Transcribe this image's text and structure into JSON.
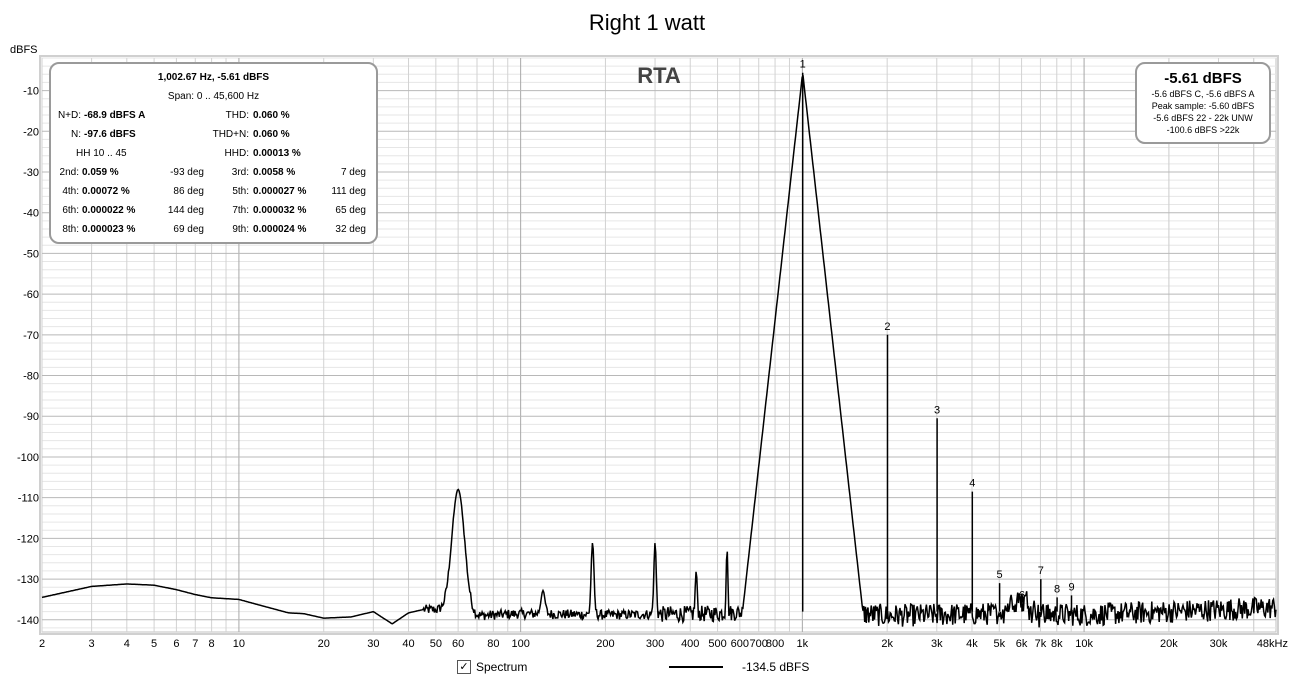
{
  "chart_data": {
    "type": "line",
    "title": "Right 1 watt",
    "plot_label": "RTA",
    "ylabel": "dBFS",
    "xlabel": "",
    "x_scale": "log",
    "xlim": [
      2,
      48000
    ],
    "ylim": [
      -143,
      -2
    ],
    "grid": true,
    "y_ticks": [
      -10,
      -20,
      -30,
      -40,
      -50,
      -60,
      -70,
      -80,
      -90,
      -100,
      -110,
      -120,
      -130,
      -140
    ],
    "y_tick_labels": [
      "-10",
      "-20",
      "-30",
      "-40",
      "-50",
      "-60",
      "-70",
      "-80",
      "-90",
      "-100",
      "-110",
      "-120",
      "-130",
      "-140"
    ],
    "x_ticks": [
      2,
      3,
      4,
      5,
      6,
      7,
      8,
      10,
      20,
      30,
      40,
      50,
      60,
      80,
      100,
      200,
      300,
      400,
      500,
      600,
      700,
      800,
      1000,
      2000,
      3000,
      4000,
      5000,
      6000,
      7000,
      8000,
      10000,
      20000,
      30000,
      48000
    ],
    "x_tick_labels": [
      "2",
      "3",
      "4",
      "5",
      "6",
      "7",
      "8",
      "10",
      "20",
      "30",
      "40",
      "50",
      "60",
      "80",
      "100",
      "200",
      "300",
      "400",
      "500",
      "600",
      "700",
      "800",
      "1k",
      "2k",
      "3k",
      "4k",
      "5k",
      "6k",
      "7k",
      "8k",
      "10k",
      "20k",
      "30k",
      "48kHz"
    ],
    "series": [
      {
        "name": "Spectrum",
        "color": "#000000",
        "baseline": [
          [
            2,
            -134.5
          ],
          [
            3,
            -131.8
          ],
          [
            4,
            -131.2
          ],
          [
            5,
            -131.5
          ],
          [
            6,
            -132.6
          ],
          [
            7,
            -133.8
          ],
          [
            8,
            -134.6
          ],
          [
            10,
            -135
          ],
          [
            12,
            -136.5
          ],
          [
            15,
            -138.3
          ],
          [
            17,
            -138.5
          ],
          [
            20,
            -139.6
          ],
          [
            25,
            -139.3
          ],
          [
            30,
            -138
          ],
          [
            35,
            -141
          ],
          [
            40,
            -138.3
          ],
          [
            45,
            -137.5
          ],
          [
            50,
            -137.5
          ],
          [
            55,
            -138
          ],
          [
            70,
            -139
          ],
          [
            100,
            -138.5
          ],
          [
            200,
            -138.8
          ],
          [
            500,
            -138.5
          ],
          [
            900,
            -137.5
          ],
          [
            1100,
            -137.5
          ],
          [
            2000,
            -139
          ],
          [
            5000,
            -138.5
          ],
          [
            10000,
            -138.8
          ],
          [
            48000,
            -137
          ]
        ],
        "peaks": [
          {
            "f": 60,
            "db": -108,
            "w": 0.032
          },
          {
            "f": 120,
            "db": -132.8,
            "w": 0.01
          },
          {
            "f": 180,
            "db": -121,
            "w": 0.007
          },
          {
            "f": 300,
            "db": -121,
            "w": 0.006
          },
          {
            "f": 420,
            "db": -128,
            "w": 0.005
          },
          {
            "f": 540,
            "db": -122,
            "w": 0.004
          },
          {
            "f": 660,
            "db": -129.5,
            "w": 0.004
          },
          {
            "f": 780,
            "db": -129.5,
            "w": 0.004
          }
        ],
        "harmonics": [
          {
            "label": "1",
            "f": 1002.67,
            "db": -5.61
          },
          {
            "label": "2",
            "f": 2005,
            "db": -70
          },
          {
            "label": "3",
            "f": 3008,
            "db": -90.5
          },
          {
            "label": "4",
            "f": 4010,
            "db": -108.5
          },
          {
            "label": "5",
            "f": 5013,
            "db": -131
          },
          {
            "label": "6",
            "f": 6016,
            "db": -136
          },
          {
            "label": "7",
            "f": 7019,
            "db": -130
          },
          {
            "label": "8",
            "f": 8021,
            "db": -134.5
          },
          {
            "label": "9",
            "f": 9024,
            "db": -134
          }
        ]
      }
    ]
  },
  "stats": {
    "header": "1,002.67 Hz, -5.61 dBFS",
    "span": "Span: 0 .. 45,600 Hz",
    "nd_label": "N+D:",
    "nd_value": "-68.9 dBFS A",
    "thd_label": "THD:",
    "thd_value": "0.060 %",
    "n_label": "N:",
    "n_value": "-97.6 dBFS",
    "thdn_label": "THD+N:",
    "thdn_value": "0.060 %",
    "hh_range": "HH 10 .. 45",
    "hhd_label": "HHD:",
    "hhd_value": "0.00013 %",
    "harmonics": [
      {
        "l1": "2nd:",
        "v1": "0.059 %",
        "d1": "-93 deg",
        "l2": "3rd:",
        "v2": "0.0058 %",
        "d2": "7 deg"
      },
      {
        "l1": "4th:",
        "v1": "0.00072 %",
        "d1": "86 deg",
        "l2": "5th:",
        "v2": "0.000027 %",
        "d2": "111 deg"
      },
      {
        "l1": "6th:",
        "v1": "0.000022 %",
        "d1": "144 deg",
        "l2": "7th:",
        "v2": "0.000032 %",
        "d2": "65 deg"
      },
      {
        "l1": "8th:",
        "v1": "0.000023 %",
        "d1": "69 deg",
        "l2": "9th:",
        "v2": "0.000024 %",
        "d2": "32 deg"
      }
    ]
  },
  "level": {
    "big": "-5.61 dBFS",
    "lines": [
      "-5.6 dBFS C, -5.6 dBFS A",
      "Peak sample: -5.60 dBFS",
      "-5.6 dBFS 22 - 22k UNW",
      "-100.6 dBFS >22k"
    ]
  },
  "legend": {
    "checkbox_mark": "✓",
    "label": "Spectrum",
    "value": "-134.5 dBFS"
  }
}
